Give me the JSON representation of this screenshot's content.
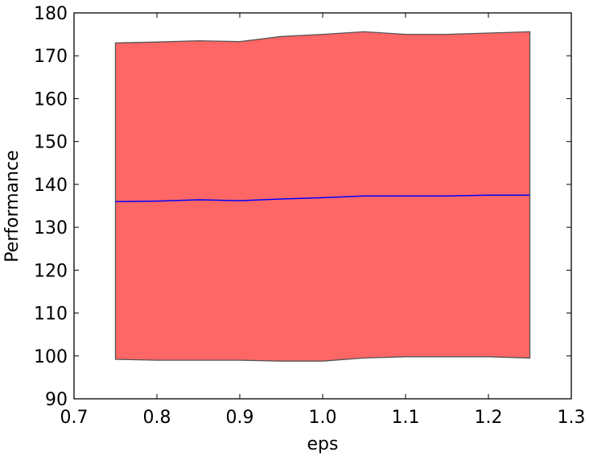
{
  "chart_data": {
    "type": "area",
    "xlabel": "eps",
    "ylabel": "Performance",
    "xlim": [
      0.7,
      1.3
    ],
    "ylim": [
      90,
      180
    ],
    "xticks": [
      "0.7",
      "0.8",
      "0.9",
      "1.0",
      "1.1",
      "1.2",
      "1.3"
    ],
    "yticks": [
      "90",
      "100",
      "110",
      "120",
      "130",
      "140",
      "150",
      "160",
      "170",
      "180"
    ],
    "grid": false,
    "x": [
      0.75,
      0.8,
      0.85,
      0.9,
      0.95,
      1.0,
      1.05,
      1.1,
      1.15,
      1.2,
      1.25
    ],
    "series": [
      {
        "role": "mean",
        "color": "#0000ff",
        "values": [
          136.0,
          136.1,
          136.4,
          136.2,
          136.6,
          136.9,
          137.3,
          137.3,
          137.3,
          137.5,
          137.5
        ]
      },
      {
        "role": "band",
        "fill_color": "#ff6666",
        "edge_color": "#555555",
        "lower": [
          99.2,
          99.0,
          99.0,
          99.0,
          98.8,
          98.8,
          99.5,
          99.8,
          99.8,
          99.8,
          99.5
        ],
        "upper": [
          173.0,
          173.2,
          173.5,
          173.3,
          174.5,
          175.0,
          175.6,
          175.0,
          175.0,
          175.3,
          175.6
        ]
      }
    ]
  }
}
